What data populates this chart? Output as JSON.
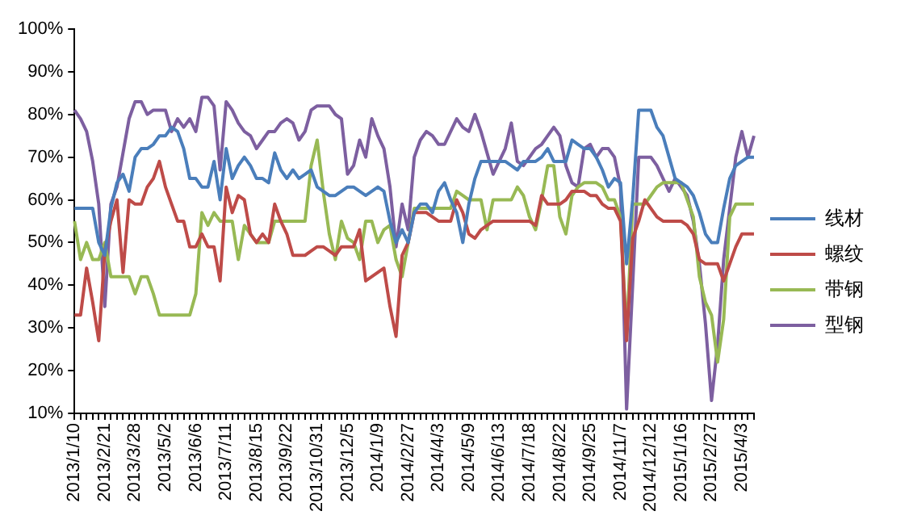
{
  "chart_data": {
    "type": "line",
    "categories": [
      "2013/1/10",
      null,
      null,
      null,
      null,
      "2013/2/21",
      null,
      null,
      null,
      null,
      "2013/3/28",
      null,
      null,
      null,
      null,
      "2013/5/2",
      null,
      null,
      null,
      null,
      "2013/6/6",
      null,
      null,
      null,
      null,
      "2013/7/11",
      null,
      null,
      null,
      null,
      "2013/8/15",
      null,
      null,
      null,
      null,
      "2013/9/22",
      null,
      null,
      null,
      null,
      "2013/10/31",
      null,
      null,
      null,
      null,
      "2013/12/5",
      null,
      null,
      null,
      null,
      "2014/1/9",
      null,
      null,
      null,
      null,
      "2014/2/27",
      null,
      null,
      null,
      null,
      "2014/4/3",
      null,
      null,
      null,
      null,
      "2014/5/9",
      null,
      null,
      null,
      null,
      "2014/6/13",
      null,
      null,
      null,
      null,
      "2014/7/18",
      null,
      null,
      null,
      null,
      "2014/8/22",
      null,
      null,
      null,
      null,
      "2014/9/25",
      null,
      null,
      null,
      null,
      "2014/11/7",
      null,
      null,
      null,
      null,
      "2014/12/12",
      null,
      null,
      null,
      null,
      "2015/1/16",
      null,
      null,
      null,
      null,
      "2015/2/27",
      null,
      null,
      null,
      null,
      "2015/4/3",
      null,
      null
    ],
    "series": [
      {
        "name": "线材",
        "color": "#4a7ebb",
        "values": [
          58,
          58,
          58,
          58,
          50,
          47,
          58,
          64,
          66,
          62,
          70,
          72,
          72,
          73,
          75,
          75,
          77,
          76,
          72,
          65,
          65,
          63,
          63,
          69,
          60,
          72,
          65,
          68,
          70,
          68,
          65,
          65,
          64,
          71,
          67,
          65,
          67,
          65,
          66,
          67,
          63,
          62,
          61,
          61,
          62,
          63,
          63,
          62,
          61,
          62,
          63,
          62,
          55,
          50,
          53,
          50,
          57,
          59,
          59,
          57,
          62,
          64,
          60,
          57,
          50,
          59,
          65,
          69,
          69,
          69,
          69,
          69,
          68,
          67,
          69,
          69,
          69,
          70,
          72,
          69,
          69,
          69,
          74,
          73,
          72,
          72,
          70,
          67,
          63,
          65,
          64,
          45,
          60,
          81,
          81,
          81,
          77,
          75,
          70,
          65,
          64,
          63,
          61,
          57,
          52,
          50,
          50,
          58,
          65,
          68,
          69,
          70,
          70
        ]
      },
      {
        "name": "螺纹",
        "color": "#be4b48",
        "values": [
          33,
          33,
          44,
          36,
          27,
          48,
          55,
          60,
          43,
          60,
          59,
          59,
          63,
          65,
          69,
          63,
          59,
          55,
          55,
          49,
          49,
          52,
          49,
          49,
          41,
          63,
          57,
          61,
          60,
          52,
          50,
          52,
          50,
          59,
          55,
          52,
          47,
          47,
          47,
          48,
          49,
          49,
          48,
          47,
          49,
          49,
          49,
          53,
          41,
          42,
          43,
          44,
          35,
          28,
          47,
          50,
          57,
          57,
          57,
          56,
          55,
          55,
          55,
          60,
          57,
          52,
          51,
          53,
          54,
          55,
          55,
          55,
          55,
          55,
          55,
          55,
          54,
          61,
          59,
          59,
          59,
          60,
          62,
          62,
          62,
          61,
          61,
          59,
          58,
          58,
          55,
          27,
          51,
          55,
          60,
          58,
          56,
          55,
          55,
          55,
          55,
          54,
          52,
          46,
          45,
          45,
          45,
          41,
          45,
          49,
          52,
          52,
          52
        ]
      },
      {
        "name": "带钢",
        "color": "#98b954",
        "values": [
          55,
          46,
          50,
          46,
          46,
          50,
          42,
          42,
          42,
          42,
          38,
          42,
          42,
          38,
          33,
          33,
          33,
          33,
          33,
          33,
          38,
          57,
          54,
          57,
          55,
          55,
          55,
          46,
          54,
          52,
          50,
          50,
          50,
          55,
          55,
          55,
          55,
          55,
          55,
          68,
          74,
          62,
          52,
          46,
          55,
          51,
          50,
          46,
          55,
          55,
          50,
          53,
          54,
          46,
          42,
          50,
          58,
          58,
          58,
          58,
          58,
          58,
          58,
          62,
          61,
          60,
          60,
          60,
          53,
          60,
          60,
          60,
          60,
          63,
          61,
          56,
          53,
          60,
          68,
          68,
          56,
          52,
          61,
          63,
          64,
          64,
          64,
          63,
          60,
          60,
          56,
          28,
          59,
          59,
          59,
          61,
          63,
          64,
          64,
          64,
          64,
          60,
          56,
          42,
          36,
          33,
          22,
          32,
          56,
          59,
          59,
          59,
          59
        ]
      },
      {
        "name": "型钢",
        "color": "#7d5fa0",
        "values": [
          81,
          79,
          76,
          69,
          59,
          35,
          59,
          63,
          71,
          79,
          83,
          83,
          80,
          81,
          81,
          81,
          76,
          79,
          77,
          79,
          76,
          84,
          84,
          82,
          67,
          83,
          81,
          78,
          76,
          75,
          72,
          74,
          76,
          76,
          78,
          79,
          78,
          74,
          76,
          81,
          82,
          82,
          82,
          80,
          79,
          66,
          68,
          74,
          70,
          79,
          75,
          72,
          63,
          49,
          59,
          53,
          70,
          74,
          76,
          75,
          73,
          73,
          76,
          79,
          77,
          76,
          80,
          76,
          71,
          66,
          69,
          72,
          78,
          69,
          68,
          70,
          72,
          73,
          75,
          77,
          75,
          68,
          64,
          63,
          72,
          73,
          70,
          72,
          72,
          70,
          63,
          11,
          40,
          70,
          70,
          70,
          68,
          65,
          62,
          65,
          63,
          61,
          55,
          45,
          31,
          13,
          26,
          46,
          58,
          70,
          76,
          70,
          75
        ]
      }
    ],
    "ylim": [
      10,
      100
    ],
    "yticks": [
      {
        "value": 10,
        "label": "10%"
      },
      {
        "value": 20,
        "label": "20%"
      },
      {
        "value": 30,
        "label": "30%"
      },
      {
        "value": 40,
        "label": "40%"
      },
      {
        "value": 50,
        "label": "50%"
      },
      {
        "value": 60,
        "label": "60%"
      },
      {
        "value": 70,
        "label": "70%"
      },
      {
        "value": 80,
        "label": "80%"
      },
      {
        "value": 90,
        "label": "90%"
      },
      {
        "value": 100,
        "label": "100%"
      }
    ],
    "grid": false,
    "legend": "right"
  }
}
